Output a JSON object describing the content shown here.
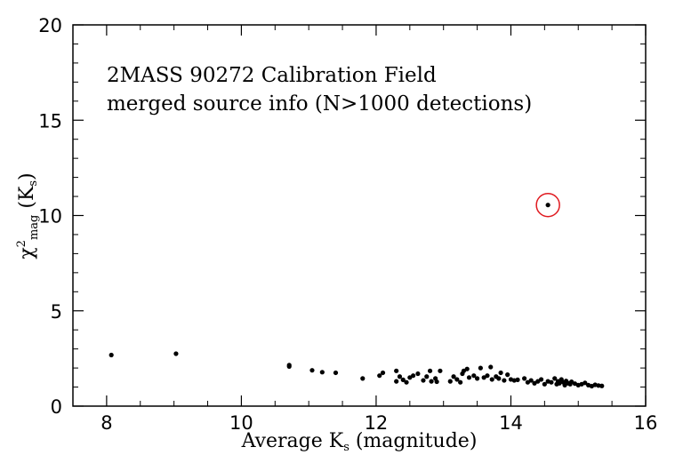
{
  "chart_data": {
    "type": "scatter",
    "annotation_lines": [
      "2MASS 90272 Calibration Field",
      "merged source info (N>1000 detections)"
    ],
    "xlabel": {
      "prefix": "Average K",
      "sub": "s",
      "suffix": " (magnitude)"
    },
    "ylabel": {
      "chi": "χ",
      "sup": "2",
      "sub": "mag",
      "suffix": " (K",
      "sub2": "s",
      "close": ")"
    },
    "xlim": [
      7.5,
      16
    ],
    "ylim": [
      0,
      20
    ],
    "xticks": [
      8,
      10,
      12,
      14,
      16
    ],
    "yticks": [
      0,
      5,
      10,
      15,
      20
    ],
    "grid": false,
    "highlight_color": "#e0191f",
    "point_color": "#000000",
    "highlight_point": [
      14.55,
      10.55
    ],
    "points": [
      [
        8.07,
        2.68
      ],
      [
        9.03,
        2.75
      ],
      [
        10.71,
        2.15
      ],
      [
        10.71,
        2.08
      ],
      [
        11.05,
        1.88
      ],
      [
        11.2,
        1.78
      ],
      [
        11.4,
        1.75
      ],
      [
        11.8,
        1.45
      ],
      [
        12.05,
        1.6
      ],
      [
        12.1,
        1.75
      ],
      [
        12.3,
        1.85
      ],
      [
        12.3,
        1.3
      ],
      [
        12.35,
        1.55
      ],
      [
        12.4,
        1.38
      ],
      [
        12.45,
        1.25
      ],
      [
        12.5,
        1.5
      ],
      [
        12.55,
        1.6
      ],
      [
        12.62,
        1.7
      ],
      [
        12.7,
        1.35
      ],
      [
        12.75,
        1.55
      ],
      [
        12.8,
        1.85
      ],
      [
        12.82,
        1.3
      ],
      [
        12.88,
        1.45
      ],
      [
        12.9,
        1.28
      ],
      [
        12.95,
        1.85
      ],
      [
        13.1,
        1.3
      ],
      [
        13.15,
        1.55
      ],
      [
        13.2,
        1.4
      ],
      [
        13.25,
        1.25
      ],
      [
        13.28,
        1.7
      ],
      [
        13.3,
        1.85
      ],
      [
        13.35,
        1.95
      ],
      [
        13.38,
        1.5
      ],
      [
        13.45,
        1.6
      ],
      [
        13.5,
        1.45
      ],
      [
        13.55,
        2.0
      ],
      [
        13.6,
        1.5
      ],
      [
        13.65,
        1.6
      ],
      [
        13.7,
        2.05
      ],
      [
        13.72,
        1.4
      ],
      [
        13.78,
        1.55
      ],
      [
        13.82,
        1.45
      ],
      [
        13.85,
        1.75
      ],
      [
        13.9,
        1.35
      ],
      [
        13.95,
        1.65
      ],
      [
        14.0,
        1.4
      ],
      [
        14.05,
        1.35
      ],
      [
        14.1,
        1.38
      ],
      [
        14.2,
        1.45
      ],
      [
        14.25,
        1.25
      ],
      [
        14.3,
        1.35
      ],
      [
        14.35,
        1.2
      ],
      [
        14.4,
        1.3
      ],
      [
        14.45,
        1.4
      ],
      [
        14.5,
        1.15
      ],
      [
        14.55,
        1.3
      ],
      [
        14.6,
        1.25
      ],
      [
        14.65,
        1.45
      ],
      [
        14.68,
        1.15
      ],
      [
        14.7,
        1.3
      ],
      [
        14.72,
        1.2
      ],
      [
        14.75,
        1.4
      ],
      [
        14.78,
        1.25
      ],
      [
        14.8,
        1.1
      ],
      [
        14.82,
        1.32
      ],
      [
        14.85,
        1.2
      ],
      [
        14.88,
        1.15
      ],
      [
        14.9,
        1.28
      ],
      [
        14.95,
        1.18
      ],
      [
        15.0,
        1.1
      ],
      [
        15.05,
        1.15
      ],
      [
        15.1,
        1.22
      ],
      [
        15.15,
        1.1
      ],
      [
        15.2,
        1.05
      ],
      [
        15.25,
        1.12
      ],
      [
        15.3,
        1.08
      ],
      [
        15.35,
        1.06
      ]
    ]
  }
}
